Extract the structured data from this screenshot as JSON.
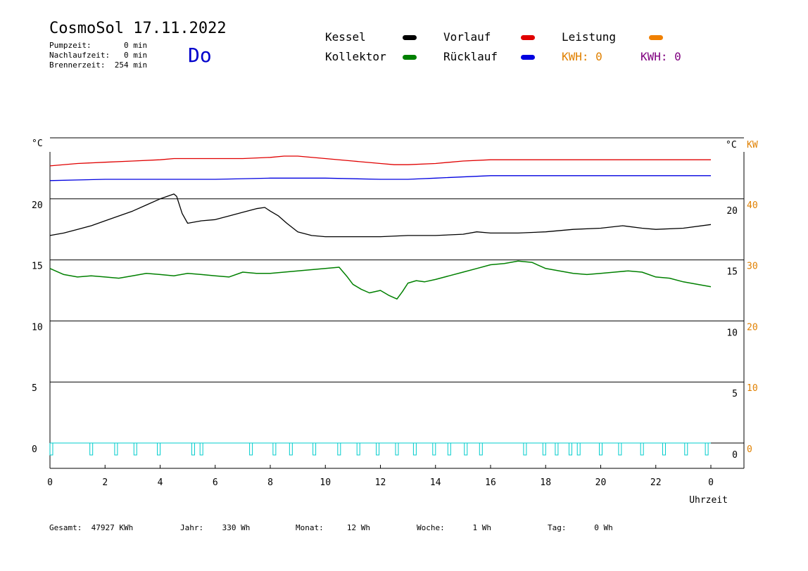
{
  "header": {
    "title": "CosmoSol 17.11.2022",
    "day": "Do",
    "pumpzeit": "Pumpzeit:       0 min",
    "nachlaufzeit": "Nachlaufzeit:   0 min",
    "brennerzeit": "Brennerzeit:  254 min"
  },
  "legend": {
    "kessel": {
      "label": "Kessel",
      "color": "#000000"
    },
    "kollektor": {
      "label": "Kollektor",
      "color": "#008000"
    },
    "vorlauf": {
      "label": "Vorlauf",
      "color": "#e00000"
    },
    "ruecklauf": {
      "label": "Rücklauf",
      "color": "#0000e0"
    },
    "leistung": {
      "label": "Leistung",
      "color": "#f08000"
    },
    "kwh_orange": {
      "label": "KWH: 0",
      "color": "#e08000"
    },
    "kwh_purple": {
      "label": "KWH: 0",
      "color": "#800080"
    }
  },
  "footer": {
    "gesamt": "Gesamt:  47927 KWh",
    "jahr": "Jahr:    330 Wh",
    "monat": "Monat:     12 Wh",
    "woche": "Woche:      1 Wh",
    "tag": "Tag:      0 Wh"
  },
  "chart_data": {
    "type": "line",
    "xlabel": "Uhrzeit",
    "x_ticks": [
      "0",
      "2",
      "4",
      "6",
      "8",
      "10",
      "12",
      "14",
      "16",
      "18",
      "20",
      "22",
      "0"
    ],
    "xlim": [
      0,
      24
    ],
    "left_unit": "°C",
    "right_unit": "°C",
    "right_unit2": "KW",
    "left_ticks": [
      "0",
      "5",
      "10",
      "15",
      "20"
    ],
    "right_ticks": [
      "0",
      "5",
      "10",
      "15",
      "20"
    ],
    "right_ticks_kw": [
      "0",
      "10",
      "20",
      "30",
      "40"
    ],
    "ylim": [
      0,
      25
    ],
    "grid": "horizontal",
    "series": [
      {
        "name": "Vorlauf",
        "color": "#e00000",
        "x": [
          0,
          1,
          2,
          3,
          4,
          4.5,
          5,
          6,
          7,
          8,
          8.5,
          9,
          10,
          11,
          12,
          12.5,
          13,
          14,
          15,
          16,
          17,
          18,
          19,
          20,
          21,
          22,
          23,
          24
        ],
        "y": [
          22.7,
          22.9,
          23.0,
          23.1,
          23.2,
          23.3,
          23.3,
          23.3,
          23.3,
          23.4,
          23.5,
          23.5,
          23.3,
          23.1,
          22.9,
          22.8,
          22.8,
          22.9,
          23.1,
          23.2,
          23.2,
          23.2,
          23.2,
          23.2,
          23.2,
          23.2,
          23.2,
          23.2
        ]
      },
      {
        "name": "Rücklauf",
        "color": "#0000e0",
        "x": [
          0,
          2,
          4,
          6,
          8,
          10,
          12,
          13,
          14,
          16,
          18,
          20,
          22,
          24
        ],
        "y": [
          21.5,
          21.6,
          21.6,
          21.6,
          21.7,
          21.7,
          21.6,
          21.6,
          21.7,
          21.9,
          21.9,
          21.9,
          21.9,
          21.9
        ]
      },
      {
        "name": "Kessel",
        "color": "#000000",
        "x": [
          0,
          0.5,
          1,
          1.5,
          2,
          2.5,
          3,
          3.5,
          4,
          4.5,
          4.6,
          4.8,
          5,
          5.5,
          6,
          6.5,
          7,
          7.5,
          7.8,
          8,
          8.3,
          8.6,
          9,
          9.5,
          10,
          11,
          12,
          13,
          14,
          15,
          15.5,
          16,
          17,
          18,
          19,
          20,
          20.8,
          21.5,
          22,
          23,
          24
        ],
        "y": [
          17.0,
          17.2,
          17.5,
          17.8,
          18.2,
          18.6,
          19.0,
          19.5,
          20.0,
          20.4,
          20.2,
          18.8,
          18.0,
          18.2,
          18.3,
          18.6,
          18.9,
          19.2,
          19.3,
          19.0,
          18.6,
          18.0,
          17.3,
          17.0,
          16.9,
          16.9,
          16.9,
          17.0,
          17.0,
          17.1,
          17.3,
          17.2,
          17.2,
          17.3,
          17.5,
          17.6,
          17.8,
          17.6,
          17.5,
          17.6,
          17.9
        ]
      },
      {
        "name": "Kollektor",
        "color": "#008000",
        "x": [
          0,
          0.5,
          1,
          1.5,
          2,
          2.5,
          3,
          3.5,
          4,
          4.5,
          5,
          5.5,
          6,
          6.5,
          7,
          7.5,
          8,
          8.5,
          9,
          9.5,
          10,
          10.5,
          10.8,
          11,
          11.3,
          11.6,
          12,
          12.3,
          12.6,
          12.8,
          13,
          13.3,
          13.6,
          14,
          14.5,
          15,
          15.5,
          16,
          16.5,
          17,
          17.5,
          18,
          18.5,
          19,
          19.5,
          20,
          20.5,
          21,
          21.5,
          22,
          22.5,
          23,
          23.5,
          24
        ],
        "y": [
          14.3,
          13.8,
          13.6,
          13.7,
          13.6,
          13.5,
          13.7,
          13.9,
          13.8,
          13.7,
          13.9,
          13.8,
          13.7,
          13.6,
          14.0,
          13.9,
          13.9,
          14.0,
          14.1,
          14.2,
          14.3,
          14.4,
          13.6,
          13.0,
          12.6,
          12.3,
          12.5,
          12.1,
          11.8,
          12.4,
          13.1,
          13.3,
          13.2,
          13.4,
          13.7,
          14.0,
          14.3,
          14.6,
          14.7,
          14.9,
          14.8,
          14.3,
          14.1,
          13.9,
          13.8,
          13.9,
          14.0,
          14.1,
          14.0,
          13.6,
          13.5,
          13.2,
          13.0,
          12.8
        ]
      },
      {
        "name": "Pumpe",
        "color": "#00cccc",
        "pulses": [
          0.05,
          1.5,
          2.4,
          3.1,
          3.95,
          5.2,
          5.5,
          7.3,
          8.15,
          8.75,
          9.6,
          10.5,
          11.2,
          11.9,
          12.6,
          13.25,
          13.95,
          14.5,
          15.1,
          15.65,
          17.25,
          17.95,
          18.4,
          18.9,
          19.2,
          20.0,
          20.7,
          21.5,
          22.3,
          23.1,
          23.85
        ]
      }
    ]
  }
}
